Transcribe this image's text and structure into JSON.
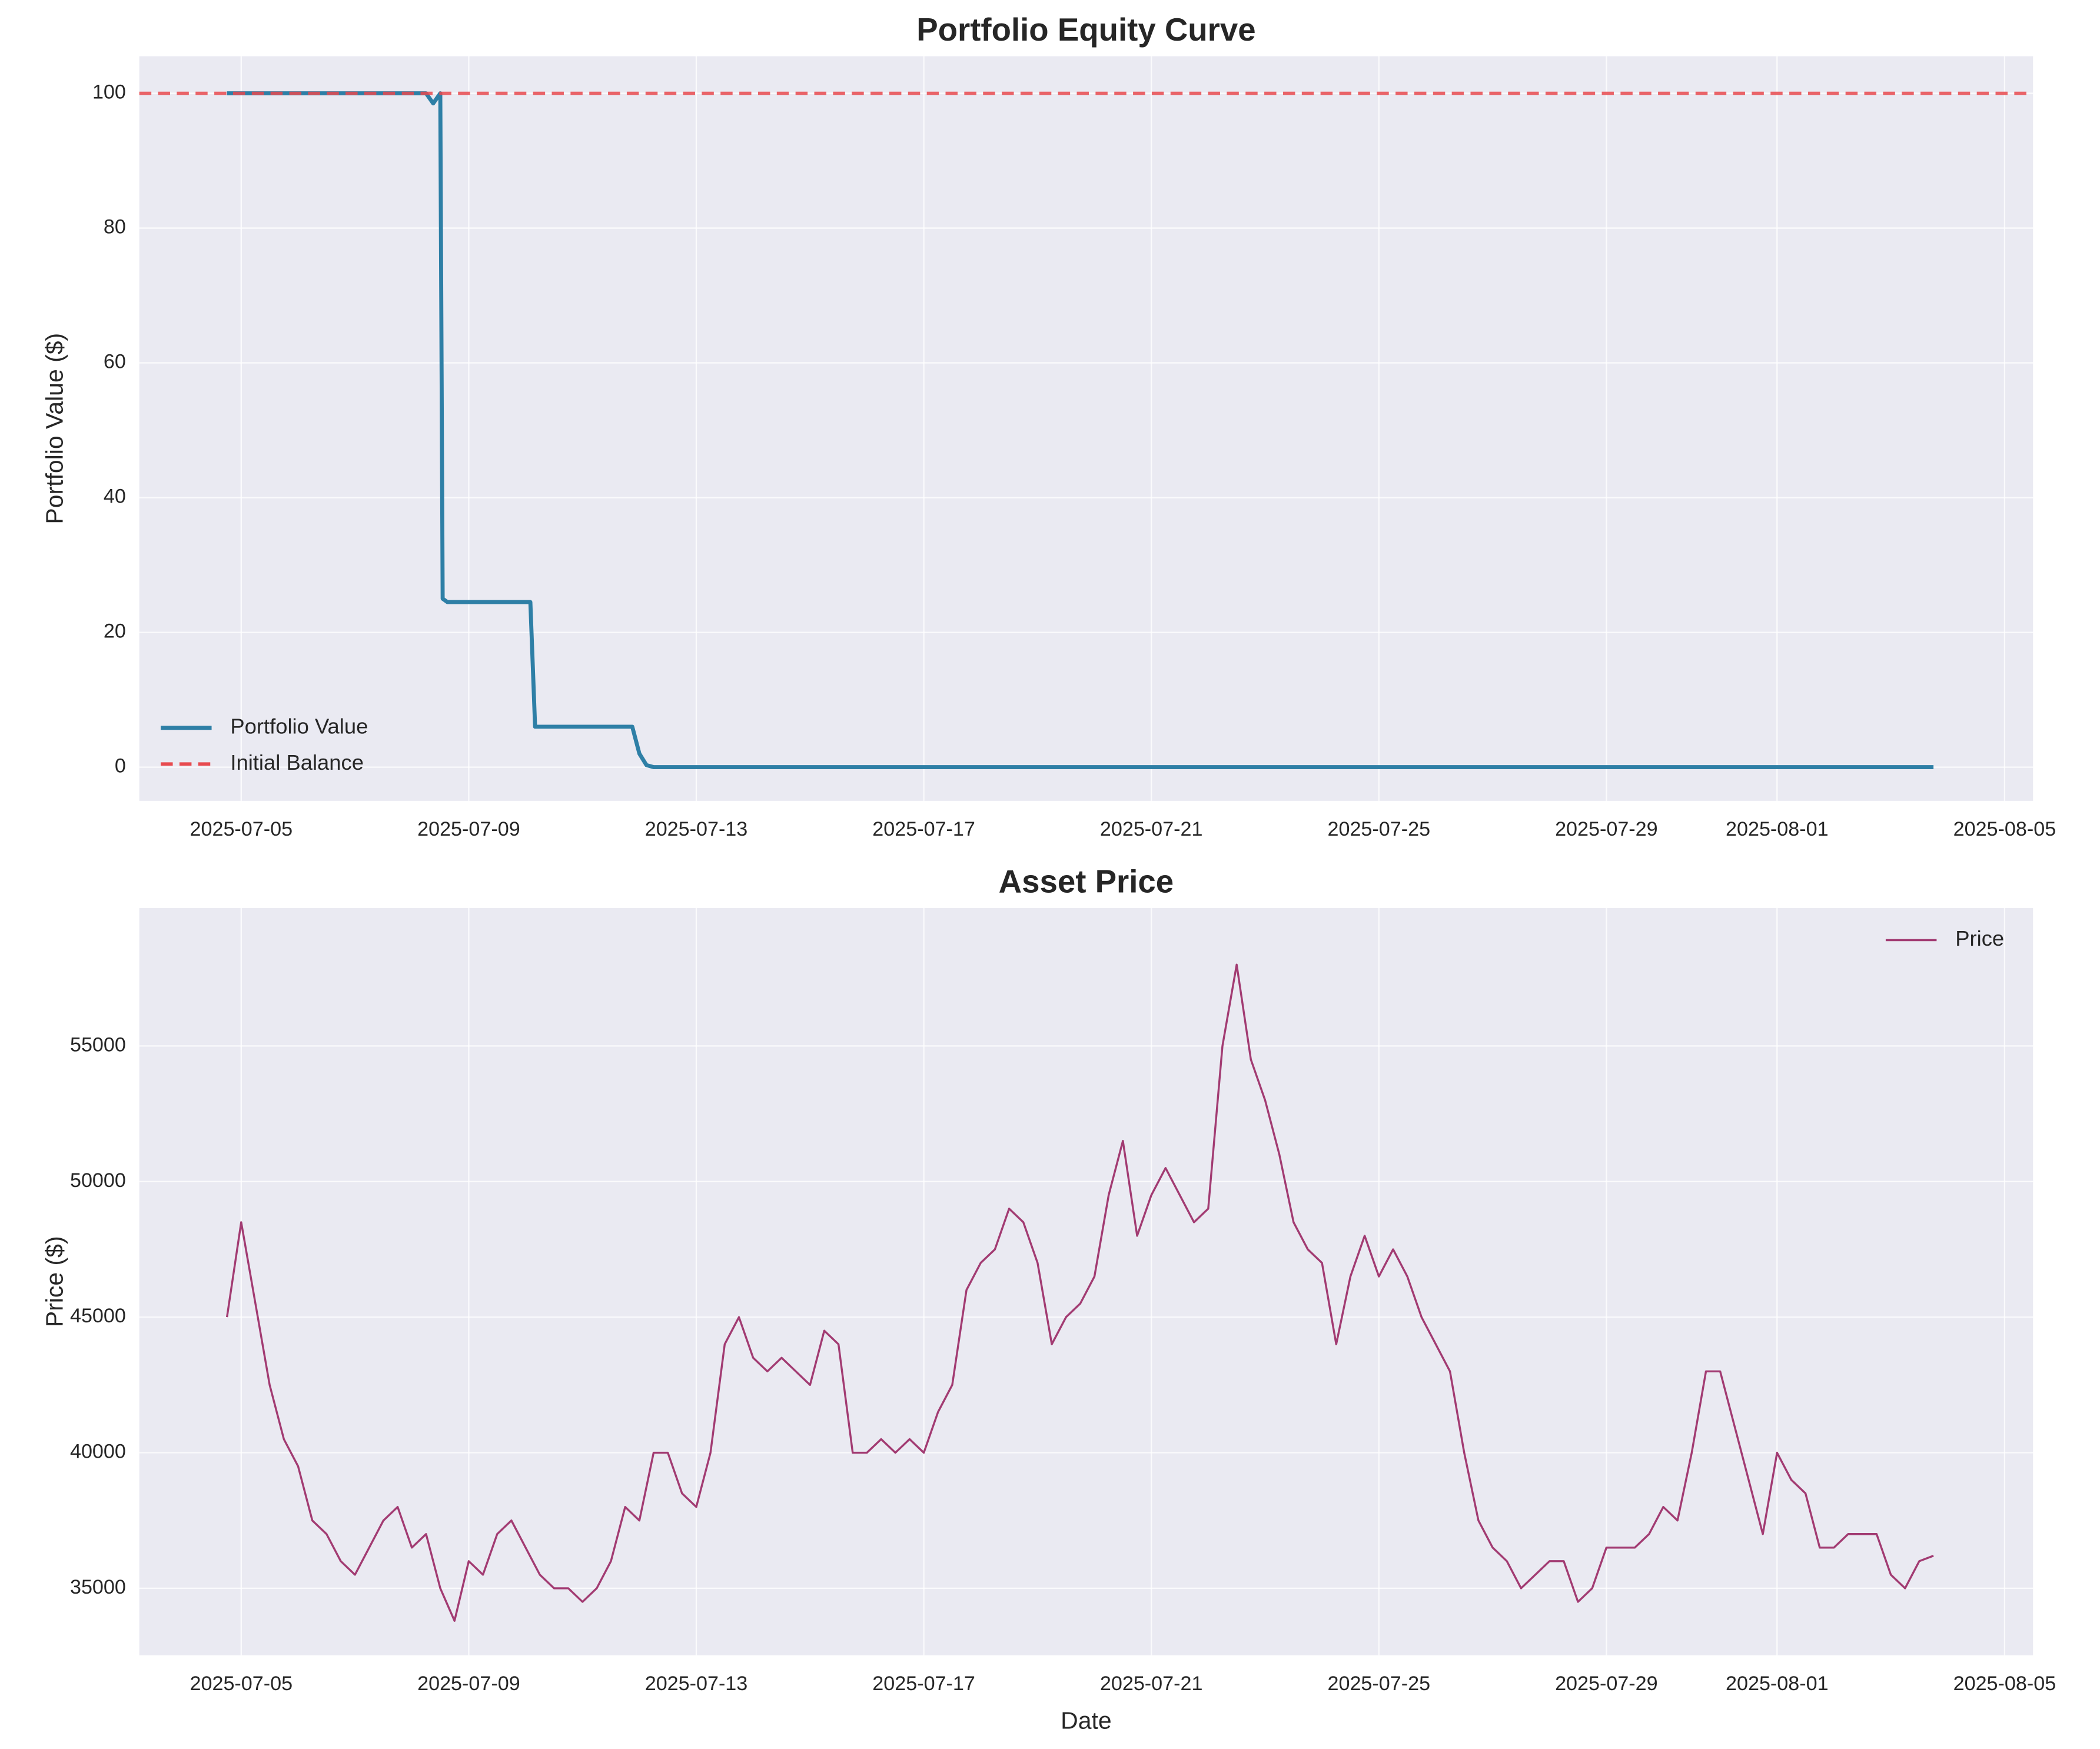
{
  "chart_data": [
    {
      "type": "line",
      "title": "Portfolio Equity Curve",
      "ylabel": "Portfolio Value ($)",
      "xlim": [
        "2025-07-03 05:00",
        "2025-08-05 12:00"
      ],
      "xticks": [
        "2025-07-05",
        "2025-07-09",
        "2025-07-13",
        "2025-07-17",
        "2025-07-21",
        "2025-07-25",
        "2025-07-29",
        "2025-08-01",
        "2025-08-05"
      ],
      "ylim": [
        -5,
        105.5
      ],
      "yticks": [
        0,
        20,
        40,
        60,
        80,
        100
      ],
      "grid": true,
      "legend": "lower left",
      "series": [
        {
          "name": "Portfolio Value",
          "color": "#2e7fa6",
          "x": [
            "2025-07-04 18:00",
            "2025-07-08 06:00",
            "2025-07-08 09:00",
            "2025-07-08 12:00",
            "2025-07-08 13:00",
            "2025-07-08 15:00",
            "2025-07-10 02:00",
            "2025-07-10 04:00",
            "2025-07-11 21:00",
            "2025-07-12 00:00",
            "2025-07-12 03:00",
            "2025-07-12 06:00",
            "2025-08-03 18:00"
          ],
          "values": [
            100,
            100,
            98.5,
            100,
            25,
            24.5,
            24.5,
            6,
            6,
            2,
            0.3,
            0,
            0
          ]
        }
      ],
      "hline": {
        "name": "Initial Balance",
        "value": 100,
        "color": "#e84a4f",
        "dashed": true
      }
    },
    {
      "type": "line",
      "title": "Asset Price",
      "xlabel": "Date",
      "ylabel": "Price ($)",
      "xlim": [
        "2025-07-03 05:00",
        "2025-08-05 12:00"
      ],
      "xticks": [
        "2025-07-05",
        "2025-07-09",
        "2025-07-13",
        "2025-07-17",
        "2025-07-21",
        "2025-07-25",
        "2025-07-29",
        "2025-08-01",
        "2025-08-05"
      ],
      "ylim": [
        32530,
        60090
      ],
      "yticks": [
        35000,
        40000,
        45000,
        50000,
        55000
      ],
      "grid": true,
      "legend": "upper right",
      "series": [
        {
          "name": "Price",
          "color": "#a23b72",
          "x": [
            "2025-07-04 18:00",
            "2025-07-05 00:00",
            "2025-07-05 06:00",
            "2025-07-05 12:00",
            "2025-07-05 18:00",
            "2025-07-06 00:00",
            "2025-07-06 06:00",
            "2025-07-06 12:00",
            "2025-07-06 18:00",
            "2025-07-07 00:00",
            "2025-07-07 06:00",
            "2025-07-07 12:00",
            "2025-07-07 18:00",
            "2025-07-08 00:00",
            "2025-07-08 06:00",
            "2025-07-08 12:00",
            "2025-07-08 18:00",
            "2025-07-09 00:00",
            "2025-07-09 06:00",
            "2025-07-09 12:00",
            "2025-07-09 18:00",
            "2025-07-10 00:00",
            "2025-07-10 06:00",
            "2025-07-10 12:00",
            "2025-07-10 18:00",
            "2025-07-11 00:00",
            "2025-07-11 06:00",
            "2025-07-11 12:00",
            "2025-07-11 18:00",
            "2025-07-12 00:00",
            "2025-07-12 06:00",
            "2025-07-12 12:00",
            "2025-07-12 18:00",
            "2025-07-13 00:00",
            "2025-07-13 06:00",
            "2025-07-13 12:00",
            "2025-07-13 18:00",
            "2025-07-14 00:00",
            "2025-07-14 06:00",
            "2025-07-14 12:00",
            "2025-07-14 18:00",
            "2025-07-15 00:00",
            "2025-07-15 06:00",
            "2025-07-15 12:00",
            "2025-07-15 18:00",
            "2025-07-16 00:00",
            "2025-07-16 06:00",
            "2025-07-16 12:00",
            "2025-07-16 18:00",
            "2025-07-17 00:00",
            "2025-07-17 06:00",
            "2025-07-17 12:00",
            "2025-07-17 18:00",
            "2025-07-18 00:00",
            "2025-07-18 06:00",
            "2025-07-18 12:00",
            "2025-07-18 18:00",
            "2025-07-19 00:00",
            "2025-07-19 06:00",
            "2025-07-19 12:00",
            "2025-07-19 18:00",
            "2025-07-20 00:00",
            "2025-07-20 06:00",
            "2025-07-20 12:00",
            "2025-07-20 18:00",
            "2025-07-21 00:00",
            "2025-07-21 06:00",
            "2025-07-21 12:00",
            "2025-07-21 18:00",
            "2025-07-22 00:00",
            "2025-07-22 06:00",
            "2025-07-22 12:00",
            "2025-07-22 18:00",
            "2025-07-23 00:00",
            "2025-07-23 06:00",
            "2025-07-23 12:00",
            "2025-07-23 18:00",
            "2025-07-24 00:00",
            "2025-07-24 06:00",
            "2025-07-24 12:00",
            "2025-07-24 18:00",
            "2025-07-25 00:00",
            "2025-07-25 06:00",
            "2025-07-25 12:00",
            "2025-07-25 18:00",
            "2025-07-26 00:00",
            "2025-07-26 06:00",
            "2025-07-26 12:00",
            "2025-07-26 18:00",
            "2025-07-27 00:00",
            "2025-07-27 06:00",
            "2025-07-27 12:00",
            "2025-07-27 18:00",
            "2025-07-28 00:00",
            "2025-07-28 06:00",
            "2025-07-28 12:00",
            "2025-07-28 18:00",
            "2025-07-29 00:00",
            "2025-07-29 06:00",
            "2025-07-29 12:00",
            "2025-07-29 18:00",
            "2025-07-30 00:00",
            "2025-07-30 06:00",
            "2025-07-30 12:00",
            "2025-07-30 18:00",
            "2025-07-31 00:00",
            "2025-07-31 06:00",
            "2025-07-31 12:00",
            "2025-07-31 18:00",
            "2025-08-01 00:00",
            "2025-08-01 06:00",
            "2025-08-01 12:00",
            "2025-08-01 18:00",
            "2025-08-02 00:00",
            "2025-08-02 06:00",
            "2025-08-02 12:00",
            "2025-08-02 18:00",
            "2025-08-03 00:00",
            "2025-08-03 06:00",
            "2025-08-03 12:00",
            "2025-08-03 18:00"
          ],
          "values": [
            45000,
            48500,
            45500,
            42500,
            40500,
            39500,
            37500,
            37000,
            36000,
            35500,
            36500,
            37500,
            38000,
            36500,
            37000,
            35000,
            33800,
            36000,
            35500,
            37000,
            37500,
            36500,
            35500,
            35000,
            35000,
            34500,
            35000,
            36000,
            38000,
            37500,
            40000,
            40000,
            38500,
            38000,
            40000,
            44000,
            45000,
            43500,
            43000,
            43500,
            43000,
            42500,
            44500,
            44000,
            40000,
            40000,
            40500,
            40000,
            40500,
            40000,
            41500,
            42500,
            46000,
            47000,
            47500,
            49000,
            48500,
            47000,
            44000,
            45000,
            45500,
            46500,
            49500,
            51500,
            48000,
            49500,
            50500,
            49500,
            48500,
            49000,
            55000,
            58000,
            54500,
            53000,
            51000,
            48500,
            47500,
            47000,
            44000,
            46500,
            48000,
            46500,
            47500,
            46500,
            45000,
            44000,
            43000,
            40000,
            37500,
            36500,
            36000,
            35000,
            35500,
            36000,
            36000,
            34500,
            35000,
            36500,
            36500,
            36500,
            37000,
            38000,
            37500,
            40000,
            43000,
            43000,
            41000,
            39000,
            37000,
            40000,
            39000,
            38500,
            36500,
            36500,
            37000,
            37000,
            37000,
            35500,
            35000,
            36000,
            36200
          ]
        }
      ]
    }
  ]
}
